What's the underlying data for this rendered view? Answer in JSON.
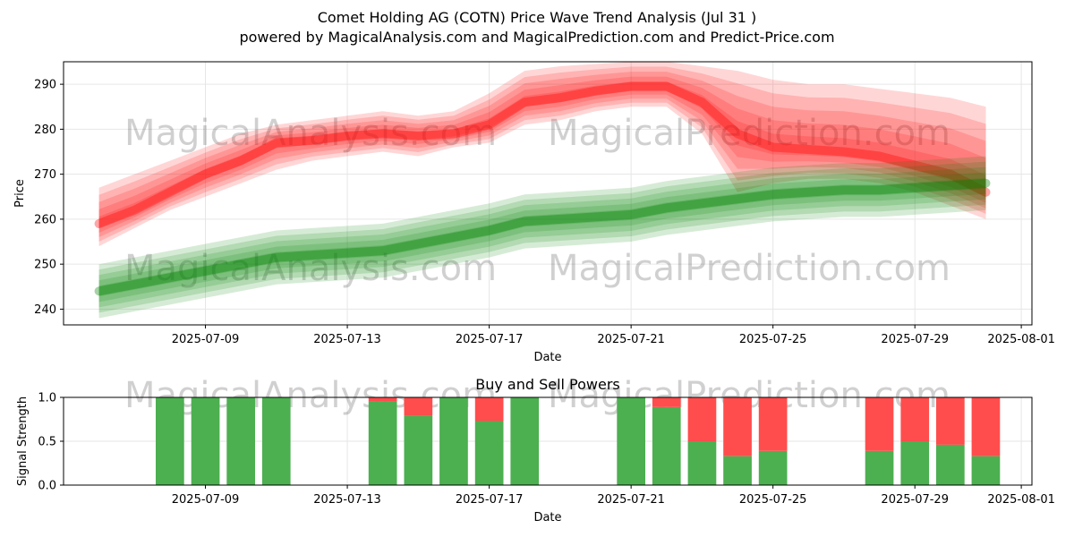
{
  "title_line1": "Comet Holding AG (COTN) Price Wave Trend Analysis (Jul 31 )",
  "title_line2": "powered by MagicalAnalysis.com and MagicalPrediction.com and Predict-Price.com",
  "watermarks": [
    "MagicalAnalysis.com",
    "MagicalPrediction.com"
  ],
  "colors": {
    "red": "#ff0000",
    "green": "#008000",
    "buy": "#4caf50",
    "sell": "#ff4d4d"
  },
  "chart_data": [
    {
      "type": "area",
      "xlabel": "Date",
      "ylabel": "Price",
      "ylim": [
        236.5,
        295
      ],
      "xticks": [
        "2025-07-09",
        "2025-07-13",
        "2025-07-17",
        "2025-07-21",
        "2025-07-25",
        "2025-07-29",
        "2025-08-01"
      ],
      "yticks": [
        240,
        250,
        260,
        270,
        280,
        290
      ],
      "grid": true,
      "series": [
        {
          "color": "red",
          "x": [
            "2025-07-06",
            "2025-07-07",
            "2025-07-08",
            "2025-07-09",
            "2025-07-10",
            "2025-07-11",
            "2025-07-12",
            "2025-07-13",
            "2025-07-14",
            "2025-07-15",
            "2025-07-16",
            "2025-07-17",
            "2025-07-18",
            "2025-07-19",
            "2025-07-20",
            "2025-07-21",
            "2025-07-22",
            "2025-07-23",
            "2025-07-24",
            "2025-07-25",
            "2025-07-26",
            "2025-07-27",
            "2025-07-28",
            "2025-07-29",
            "2025-07-30",
            "2025-07-31"
          ],
          "center": [
            259,
            262,
            266,
            270,
            273,
            277,
            277.5,
            278.5,
            279,
            278.5,
            279,
            281,
            286,
            287,
            288.5,
            289.5,
            289.5,
            286,
            279,
            276,
            275.5,
            275,
            274,
            272,
            270,
            266
          ],
          "lower": [
            254,
            258,
            262,
            265,
            268,
            271,
            273,
            274,
            275,
            274,
            276,
            277,
            281,
            282,
            284,
            285,
            285,
            279,
            266,
            268,
            269,
            269,
            268,
            266,
            263,
            260
          ],
          "upper": [
            267,
            270,
            273,
            276,
            279,
            281,
            282,
            283,
            284,
            283,
            284,
            288,
            293,
            294,
            294.5,
            295,
            295,
            294,
            293,
            291,
            290,
            290,
            289,
            288,
            287,
            285
          ]
        },
        {
          "color": "green",
          "x": [
            "2025-07-06",
            "2025-07-07",
            "2025-07-08",
            "2025-07-09",
            "2025-07-10",
            "2025-07-11",
            "2025-07-12",
            "2025-07-13",
            "2025-07-14",
            "2025-07-15",
            "2025-07-16",
            "2025-07-17",
            "2025-07-18",
            "2025-07-19",
            "2025-07-20",
            "2025-07-21",
            "2025-07-22",
            "2025-07-23",
            "2025-07-24",
            "2025-07-25",
            "2025-07-26",
            "2025-07-27",
            "2025-07-28",
            "2025-07-29",
            "2025-07-30",
            "2025-07-31"
          ],
          "center": [
            244,
            245.5,
            247,
            248.5,
            250,
            251.5,
            252,
            252.5,
            253,
            254.5,
            256,
            257.5,
            259.5,
            260,
            260.5,
            261,
            262.5,
            263.5,
            264.5,
            265.5,
            266,
            266.5,
            266.5,
            267,
            267.5,
            268
          ],
          "lower": [
            238,
            239.5,
            241,
            242.5,
            244,
            245.5,
            246,
            246.5,
            247,
            248.5,
            250,
            251.5,
            253.5,
            254,
            254.5,
            255,
            256.5,
            257.5,
            258.5,
            259.5,
            260,
            260.5,
            260.5,
            261,
            261.5,
            262
          ],
          "upper": [
            250,
            251.5,
            253,
            254.5,
            256,
            257.5,
            258,
            258.5,
            259,
            260.5,
            262,
            263.5,
            265.5,
            266,
            266.5,
            267,
            268.5,
            269.5,
            270.5,
            271.5,
            272,
            272.5,
            272.5,
            273,
            273.5,
            274
          ]
        }
      ]
    },
    {
      "type": "bar",
      "title": "Buy and Sell Powers",
      "xlabel": "Date",
      "ylabel": "Signal Strength",
      "ylim": [
        0,
        1
      ],
      "yticks": [
        "0.0",
        "0.5",
        "1.0"
      ],
      "xticks": [
        "2025-07-09",
        "2025-07-13",
        "2025-07-17",
        "2025-07-21",
        "2025-07-25",
        "2025-07-29",
        "2025-08-01"
      ],
      "grid": true,
      "categories": [
        "2025-07-08",
        "2025-07-09",
        "2025-07-10",
        "2025-07-11",
        "2025-07-14",
        "2025-07-15",
        "2025-07-16",
        "2025-07-17",
        "2025-07-18",
        "2025-07-21",
        "2025-07-22",
        "2025-07-23",
        "2025-07-24",
        "2025-07-25",
        "2025-07-28",
        "2025-07-29",
        "2025-07-30",
        "2025-07-31"
      ],
      "buy": [
        1.0,
        1.0,
        1.0,
        1.0,
        0.95,
        0.79,
        1.0,
        0.73,
        1.0,
        1.0,
        0.89,
        0.5,
        0.33,
        0.39,
        0.39,
        0.5,
        0.46,
        0.33
      ],
      "sell": [
        0.0,
        0.0,
        0.0,
        0.0,
        0.05,
        0.21,
        0.0,
        0.27,
        0.0,
        0.0,
        0.11,
        0.5,
        0.67,
        0.61,
        0.61,
        0.5,
        0.54,
        0.67
      ]
    }
  ]
}
